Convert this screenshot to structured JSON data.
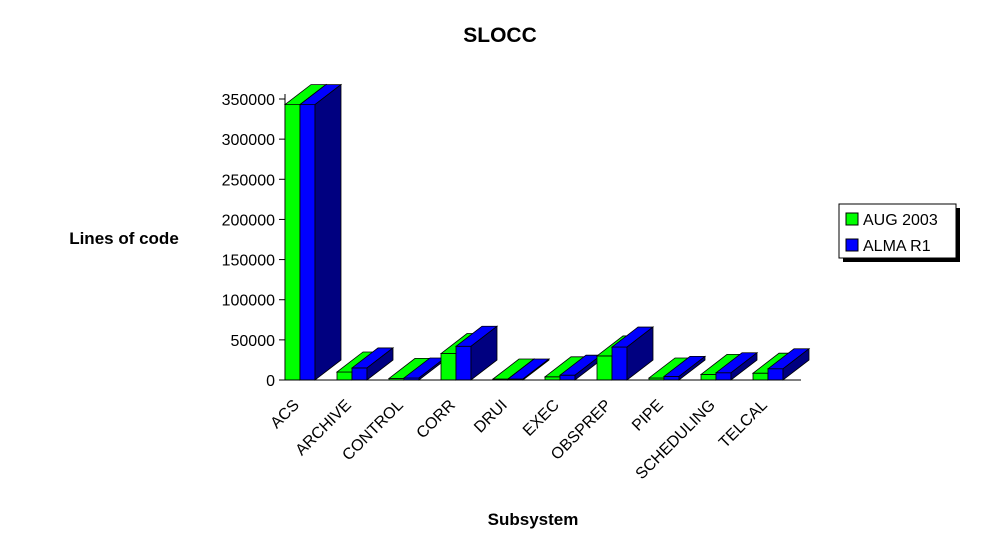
{
  "chart_data": {
    "type": "bar",
    "title": "SLOCC",
    "xlabel": "Subsystem",
    "ylabel": "Lines of  code",
    "ylim": [
      0,
      350000
    ],
    "yticks": [
      0,
      50000,
      100000,
      150000,
      200000,
      250000,
      300000,
      350000
    ],
    "categories": [
      "ACS",
      "ARCHIVE",
      "CONTROL",
      "CORR",
      "DRUI",
      "EXEC",
      "OBSPREP",
      "PIPE",
      "SCHEDULING",
      "TELCAL"
    ],
    "series": [
      {
        "name": "AUG 2003",
        "color": "#00ff00",
        "side_color": "#008000",
        "values": [
          343000,
          10000,
          2000,
          33000,
          500,
          4000,
          30000,
          2500,
          7000,
          8500
        ]
      },
      {
        "name": "ALMA R1",
        "color": "#0000ff",
        "side_color": "#000080",
        "values": [
          343000,
          15000,
          2500,
          42000,
          500,
          6000,
          41000,
          4500,
          9000,
          14000
        ]
      }
    ],
    "legend_position": "right",
    "grid": false,
    "style": "3d-clustered"
  }
}
